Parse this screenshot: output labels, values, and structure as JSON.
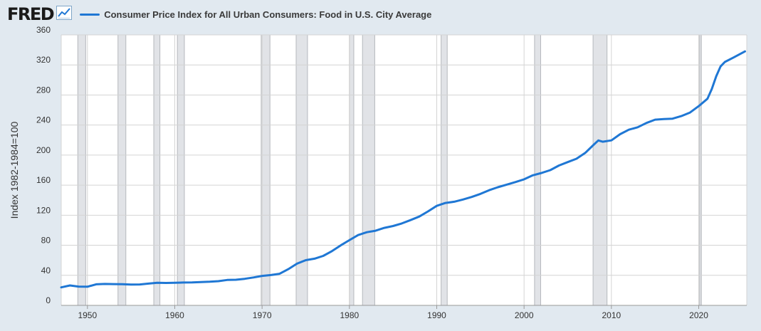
{
  "brand": {
    "logo": "FRED",
    "icon": "line-chart-icon"
  },
  "chart_data": {
    "type": "line",
    "title": "Consumer Price Index for All Urban Consumers: Food in U.S. City Average",
    "xlabel": "",
    "ylabel": "Index 1982-1984=100",
    "xlim": [
      1947.0,
      2025.5
    ],
    "ylim": [
      0,
      360
    ],
    "yticks": [
      0,
      40,
      80,
      120,
      160,
      200,
      240,
      280,
      320,
      360
    ],
    "xticks": [
      1950,
      1960,
      1970,
      1980,
      1990,
      2000,
      2010,
      2020
    ],
    "grid": true,
    "recessions": [
      [
        1948.9,
        1949.8
      ],
      [
        1953.5,
        1954.4
      ],
      [
        1957.6,
        1958.3
      ],
      [
        1960.3,
        1961.1
      ],
      [
        1969.9,
        1970.9
      ],
      [
        1973.9,
        1975.2
      ],
      [
        1980.0,
        1980.5
      ],
      [
        1981.5,
        1982.9
      ],
      [
        1990.5,
        1991.2
      ],
      [
        2001.2,
        2001.9
      ],
      [
        2007.9,
        2009.5
      ],
      [
        2020.1,
        2020.3
      ]
    ],
    "series": [
      {
        "name": "Consumer Price Index for All Urban Consumers: Food in U.S. City Average",
        "color": "#1f77d4",
        "x": [
          1947,
          1948,
          1949,
          1950,
          1951,
          1952,
          1953,
          1954,
          1955,
          1956,
          1957,
          1958,
          1959,
          1960,
          1961,
          1962,
          1963,
          1964,
          1965,
          1966,
          1967,
          1968,
          1969,
          1970,
          1971,
          1972,
          1973,
          1974,
          1975,
          1976,
          1977,
          1978,
          1979,
          1980,
          1981,
          1982,
          1983,
          1984,
          1985,
          1986,
          1987,
          1988,
          1989,
          1990,
          1991,
          1992,
          1993,
          1994,
          1995,
          1996,
          1997,
          1998,
          1999,
          2000,
          2001,
          2002,
          2003,
          2004,
          2005,
          2006,
          2007,
          2008,
          2008.5,
          2009,
          2010,
          2011,
          2012,
          2013,
          2014,
          2015,
          2016,
          2017,
          2018,
          2019,
          2020,
          2021,
          2021.5,
          2022,
          2022.5,
          2023,
          2024,
          2025.3
        ],
        "values": [
          24,
          26.5,
          25,
          24.8,
          28,
          28.5,
          28.3,
          28.2,
          27.8,
          27.9,
          29.0,
          30.0,
          29.8,
          30.0,
          30.4,
          30.6,
          31.1,
          31.5,
          32.2,
          33.8,
          34.1,
          35.3,
          37.1,
          39.2,
          40.4,
          42.1,
          48.2,
          55.5,
          60.2,
          62.1,
          65.8,
          72.2,
          79.9,
          86.8,
          93.6,
          97.4,
          99.4,
          103.2,
          105.6,
          109.0,
          113.5,
          118.2,
          125.1,
          132.4,
          136.3,
          137.9,
          140.9,
          144.3,
          148.4,
          153.3,
          157.3,
          160.7,
          164.1,
          167.8,
          173.1,
          176.2,
          180.0,
          186.2,
          190.7,
          195.2,
          202.9,
          214.1,
          219.5,
          217.8,
          219.6,
          227.8,
          233.8,
          237.0,
          242.7,
          247.2,
          247.9,
          248.5,
          251.9,
          256.6,
          265.2,
          275.0,
          288.0,
          305.0,
          318.0,
          324.0,
          330.0,
          338.0
        ]
      }
    ]
  }
}
